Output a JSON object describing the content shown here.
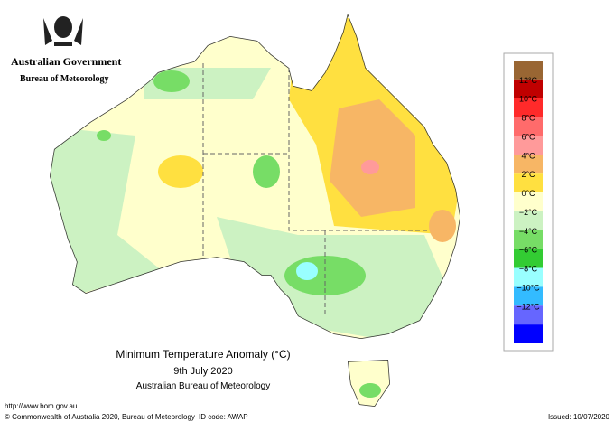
{
  "header": {
    "government": "Australian Government",
    "agency": "Bureau of Meteorology"
  },
  "title": {
    "line1": "Minimum Temperature Anomaly (°C)",
    "line2": "9th July 2020",
    "line3": "Australian Bureau of Meteorology"
  },
  "legend": {
    "colors": [
      "#996633",
      "#c00000",
      "#ff2a2a",
      "#ff6b6b",
      "#ff9a9a",
      "#f7b665",
      "#ffe040",
      "#ffffcc",
      "#ccf2c2",
      "#77dd66",
      "#33cc33",
      "#99ffff",
      "#33bbff",
      "#6666ff",
      "#0000ff"
    ],
    "labels": [
      "12°C",
      "10°C",
      "8°C",
      "6°C",
      "4°C",
      "2°C",
      "0°C",
      "−2°C",
      "−4°C",
      "−6°C",
      "−8°C",
      "−10°C",
      "−12°C"
    ]
  },
  "footer": {
    "url": "http://www.bom.gov.au",
    "copyright": "© Commonwealth of Australia 2020, Bureau of Meteorology",
    "id_code": "ID code: AWAP",
    "issued": "Issued: 10/07/2020"
  }
}
